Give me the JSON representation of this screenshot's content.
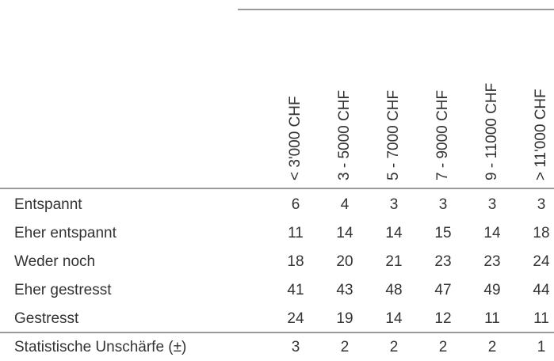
{
  "table": {
    "columns": [
      "< 3'000 CHF",
      "3 - 5000 CHF",
      "5 - 7000 CHF",
      "7 - 9000 CHF",
      "9 - 11000 CHF",
      "> 11'000 CHF"
    ],
    "rows": [
      {
        "label": "Entspannt",
        "values": [
          6,
          4,
          3,
          3,
          3,
          3
        ]
      },
      {
        "label": "Eher entspannt",
        "values": [
          11,
          14,
          14,
          15,
          14,
          18
        ]
      },
      {
        "label": "Weder noch",
        "values": [
          18,
          20,
          21,
          23,
          23,
          24
        ]
      },
      {
        "label": "Eher gestresst",
        "values": [
          41,
          43,
          48,
          47,
          49,
          44
        ]
      },
      {
        "label": "Gestresst",
        "values": [
          24,
          19,
          14,
          12,
          11,
          11
        ]
      }
    ],
    "footer": {
      "label": "Statistische Unschärfe (±)",
      "values": [
        3,
        2,
        2,
        2,
        2,
        1
      ]
    }
  }
}
